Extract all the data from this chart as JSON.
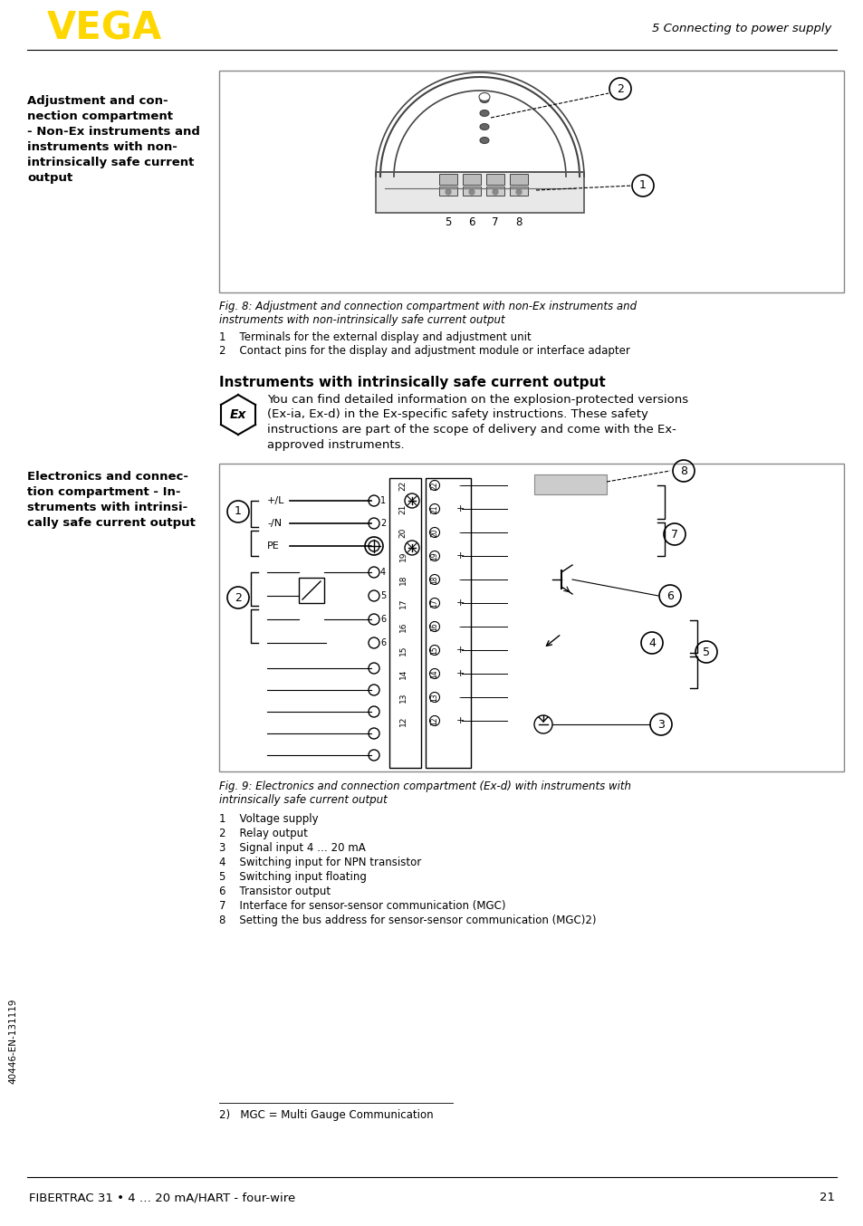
{
  "page_bg": "#ffffff",
  "header_logo_color": "#FFD700",
  "header_section": "5 Connecting to power supply",
  "footer_text": "FIBERTRAC 31 • 4 … 20 mA/HART - four-wire",
  "footer_page": "21",
  "left_margin_text": "40446-EN-131119",
  "left_sidebar_label1": "Adjustment and con-\nnection compartment\n- Non-Ex instruments and\ninstruments with non-\nintrinsically safe current\noutput",
  "left_sidebar_label2": "Electronics and connec-\ntion compartment - In-\nstruments with intrinsi-\ncally safe current output",
  "fig8_caption_line1": "Fig. 8: Adjustment and connection compartment with non-Ex instruments and",
  "fig8_caption_line2": "instruments with non-intrinsically safe current output",
  "fig8_item1": "1    Terminals for the external display and adjustment unit",
  "fig8_item2": "2    Contact pins for the display and adjustment module or interface adapter",
  "instruments_title": "Instruments with intrinsically safe current output",
  "instruments_body": [
    "You can find detailed information on the explosion-protected versions",
    "(Ex-ia, Ex-d) in the Ex-specific safety instructions. These safety",
    "instructions are part of the scope of delivery and come with the Ex-",
    "approved instruments."
  ],
  "fig9_caption_line1": "Fig. 9: Electronics and connection compartment (Ex-d) with instruments with",
  "fig9_caption_line2": "intrinsically safe current output",
  "fig9_items": [
    "1    Voltage supply",
    "2    Relay output",
    "3    Signal input 4 … 20 mA",
    "4    Switching input for NPN transistor",
    "5    Switching input floating",
    "6    Transistor output",
    "7    Interface for sensor-sensor communication (MGC)",
    "8    Setting the bus address for sensor-sensor communication (MGC)2)"
  ],
  "footnote": "2)   MGC = Multi Gauge Communication",
  "text_color": "#000000"
}
